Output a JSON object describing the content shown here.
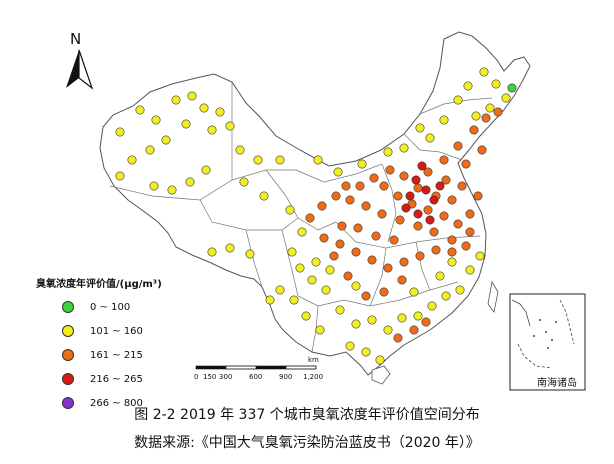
{
  "map": {
    "north_label": "N",
    "legend_title": "臭氧浓度年评价值/(μg/m³)",
    "legend": [
      {
        "label": "0 ~ 100",
        "color": "#3fd23f"
      },
      {
        "label": "101 ~ 160",
        "color": "#f3ee1f"
      },
      {
        "label": "161 ~ 215",
        "color": "#ee6c17"
      },
      {
        "label": "216 ~ 265",
        "color": "#d61a16"
      },
      {
        "label": "266 ~ 800",
        "color": "#8a30c8"
      }
    ],
    "scale": {
      "unit": "km",
      "ticks": [
        "0",
        "150",
        "300",
        "600",
        "900",
        "1,200"
      ]
    },
    "inset_label": "南海诸岛"
  },
  "captions": {
    "line1": "图 2-2 2019 年 337 个城市臭氧浓度年评价值空间分布",
    "line2": "数据来源:《中国大气臭氧污染防治蓝皮书（2020 年）》"
  }
}
